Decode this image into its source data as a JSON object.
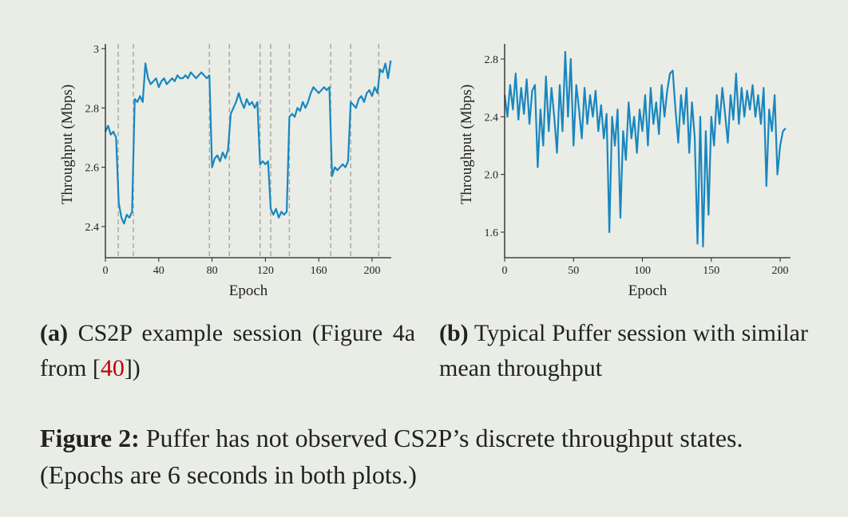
{
  "chart_data": [
    {
      "type": "line",
      "xlabel": "Epoch",
      "ylabel": "Throughput (Mbps)",
      "color": "#1a86bf",
      "xlim": [
        0,
        214.4
      ],
      "ylim": [
        2.295,
        3.016
      ],
      "xticks": [
        0,
        40,
        80,
        120,
        160,
        200
      ],
      "yticks": [
        2.4,
        2.6,
        2.8,
        3
      ],
      "change_points": [
        9.6,
        21,
        78,
        93,
        116,
        124,
        138,
        169,
        184,
        205
      ],
      "x": [
        0,
        2,
        4,
        6,
        8,
        10,
        12,
        14,
        16,
        18,
        20,
        22,
        24,
        26,
        28,
        30,
        32,
        34,
        36,
        38,
        40,
        42,
        44,
        46,
        48,
        50,
        52,
        54,
        56,
        58,
        60,
        62,
        64,
        66,
        68,
        70,
        72,
        74,
        76,
        78,
        80,
        82,
        84,
        86,
        88,
        90,
        92,
        94,
        96,
        98,
        100,
        102,
        104,
        106,
        108,
        110,
        112,
        114,
        116,
        118,
        120,
        122,
        124,
        126,
        128,
        130,
        132,
        134,
        136,
        138,
        140,
        142,
        144,
        146,
        148,
        150,
        152,
        154,
        156,
        158,
        160,
        162,
        164,
        166,
        168,
        170,
        172,
        174,
        176,
        178,
        180,
        182,
        184,
        186,
        188,
        190,
        192,
        194,
        196,
        198,
        200,
        202,
        204,
        206,
        208,
        210,
        212,
        214
      ],
      "values": [
        2.72,
        2.74,
        2.71,
        2.72,
        2.7,
        2.48,
        2.43,
        2.41,
        2.44,
        2.43,
        2.45,
        2.83,
        2.82,
        2.84,
        2.82,
        2.95,
        2.9,
        2.88,
        2.89,
        2.9,
        2.87,
        2.89,
        2.9,
        2.88,
        2.89,
        2.9,
        2.89,
        2.91,
        2.9,
        2.9,
        2.91,
        2.9,
        2.92,
        2.91,
        2.9,
        2.91,
        2.92,
        2.91,
        2.9,
        2.91,
        2.6,
        2.63,
        2.64,
        2.62,
        2.65,
        2.63,
        2.66,
        2.78,
        2.8,
        2.82,
        2.85,
        2.82,
        2.8,
        2.83,
        2.81,
        2.82,
        2.8,
        2.82,
        2.61,
        2.62,
        2.61,
        2.62,
        2.46,
        2.44,
        2.46,
        2.43,
        2.45,
        2.44,
        2.45,
        2.77,
        2.78,
        2.77,
        2.8,
        2.79,
        2.82,
        2.8,
        2.82,
        2.85,
        2.87,
        2.86,
        2.85,
        2.86,
        2.87,
        2.86,
        2.87,
        2.57,
        2.6,
        2.59,
        2.6,
        2.61,
        2.6,
        2.62,
        2.82,
        2.81,
        2.8,
        2.83,
        2.84,
        2.82,
        2.85,
        2.86,
        2.84,
        2.87,
        2.85,
        2.93,
        2.92,
        2.95,
        2.9,
        2.96
      ],
      "caption_label": "(a)",
      "caption_text": "CS2P example session (Figure 4a from [",
      "caption_ref": "40",
      "caption_end": "])"
    },
    {
      "type": "line",
      "xlabel": "Epoch",
      "ylabel": "Throughput (Mbps)",
      "color": "#1a86bf",
      "xlim": [
        0,
        207.5
      ],
      "ylim": [
        1.423,
        2.905
      ],
      "xticks": [
        0,
        50,
        100,
        150,
        200
      ],
      "yticks": [
        1.6,
        {
          "value": 2,
          "label": "2.0"
        },
        2.4,
        2.8
      ],
      "x": [
        0,
        2,
        4,
        6,
        8,
        10,
        12,
        14,
        16,
        18,
        20,
        22,
        24,
        26,
        28,
        30,
        32,
        34,
        36,
        38,
        40,
        42,
        44,
        46,
        48,
        50,
        52,
        54,
        56,
        58,
        60,
        62,
        64,
        66,
        68,
        70,
        72,
        74,
        76,
        78,
        80,
        82,
        84,
        86,
        88,
        90,
        92,
        94,
        96,
        98,
        100,
        102,
        104,
        106,
        108,
        110,
        112,
        114,
        116,
        118,
        120,
        122,
        124,
        126,
        128,
        130,
        132,
        134,
        136,
        138,
        140,
        142,
        144,
        146,
        148,
        150,
        152,
        154,
        156,
        158,
        160,
        162,
        164,
        166,
        168,
        170,
        172,
        174,
        176,
        178,
        180,
        182,
        184,
        186,
        188,
        190,
        192,
        194,
        196,
        198,
        200,
        202,
        204
      ],
      "values": [
        2.55,
        2.4,
        2.62,
        2.45,
        2.7,
        2.38,
        2.6,
        2.42,
        2.66,
        2.35,
        2.58,
        2.62,
        2.05,
        2.45,
        2.2,
        2.68,
        2.3,
        2.6,
        2.4,
        2.15,
        2.62,
        2.3,
        2.85,
        2.4,
        2.8,
        2.2,
        2.62,
        2.45,
        2.25,
        2.6,
        2.35,
        2.55,
        2.4,
        2.58,
        2.3,
        2.48,
        2.25,
        2.42,
        1.6,
        2.4,
        2.2,
        2.45,
        1.7,
        2.3,
        2.1,
        2.5,
        2.25,
        2.4,
        2.15,
        2.45,
        2.3,
        2.55,
        2.2,
        2.6,
        2.35,
        2.5,
        2.28,
        2.62,
        2.4,
        2.58,
        2.7,
        2.72,
        2.45,
        2.22,
        2.55,
        2.35,
        2.6,
        2.15,
        2.5,
        2.25,
        1.52,
        2.4,
        1.5,
        2.3,
        1.72,
        2.4,
        2.2,
        2.55,
        2.35,
        2.6,
        2.42,
        2.22,
        2.55,
        2.38,
        2.7,
        2.35,
        2.6,
        2.4,
        2.58,
        2.45,
        2.62,
        2.4,
        2.55,
        2.35,
        2.6,
        1.92,
        2.45,
        2.3,
        2.55,
        2.0,
        2.2,
        2.3,
        2.32
      ],
      "caption_label": "(b)",
      "caption_text": "Typical Puffer session with similar mean throughput"
    }
  ],
  "figure_caption": {
    "label": "Figure 2:",
    "text": "Puffer has not observed CS2P’s discrete throughput states. (Epochs are 6 seconds in both plots.)"
  }
}
